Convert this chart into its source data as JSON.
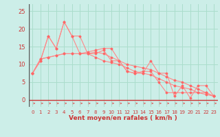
{
  "xlabel": "Vent moyen/en rafales ( km/h )",
  "bg_color": "#cceee8",
  "grid_color": "#aaddcc",
  "line_color": "#ff8888",
  "marker_color": "#ff6666",
  "spine_color": "#cc3333",
  "xlim": [
    -0.5,
    23.5
  ],
  "ylim": [
    -2,
    27
  ],
  "yticks": [
    0,
    5,
    10,
    15,
    20,
    25
  ],
  "xticks": [
    0,
    1,
    2,
    3,
    4,
    5,
    6,
    7,
    8,
    9,
    10,
    11,
    12,
    13,
    14,
    15,
    16,
    17,
    18,
    19,
    20,
    21,
    22,
    23
  ],
  "series": [
    [
      7.5,
      11,
      18,
      14.5,
      22,
      18,
      18,
      13,
      13,
      14,
      11,
      11,
      8,
      7.5,
      7.5,
      11,
      7.5,
      7.5,
      1,
      4,
      0.5,
      4,
      4,
      1
    ],
    [
      7.5,
      11,
      18,
      14.5,
      22,
      18,
      13,
      13.5,
      14,
      14.5,
      14.5,
      11,
      8,
      7.5,
      8,
      8,
      5,
      2,
      2,
      2,
      2,
      2,
      2,
      1
    ],
    [
      7.5,
      11.5,
      12,
      12.5,
      13,
      13,
      13,
      13,
      13.5,
      13,
      12,
      11,
      10,
      9.5,
      9,
      8.5,
      7.5,
      6.5,
      5.5,
      5,
      4,
      3,
      2,
      1
    ],
    [
      7.5,
      11.5,
      12,
      12.5,
      13,
      13,
      13,
      13,
      12,
      11,
      10.5,
      10,
      9,
      8,
      7.5,
      7,
      6,
      5,
      4,
      3.5,
      3,
      2,
      1.5,
      1
    ]
  ],
  "arrow_color": "#dd5555",
  "xlabel_fontsize": 6.5,
  "tick_fontsize": 5,
  "ytick_fontsize": 6
}
